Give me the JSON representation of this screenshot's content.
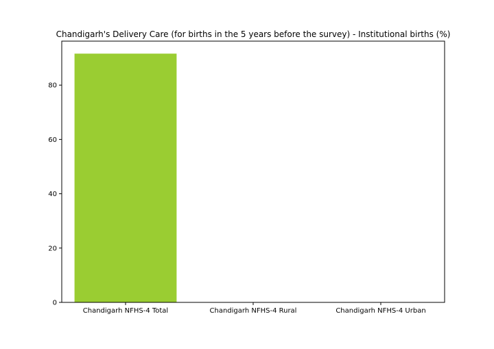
{
  "chart_data": {
    "type": "bar",
    "title": "Chandigarh's Delivery Care (for births in the 5 years before the survey) - Institutional births (%)",
    "categories": [
      "Chandigarh NFHS-4 Total",
      "Chandigarh NFHS-4 Rural",
      "Chandigarh NFHS-4 Urban"
    ],
    "values": [
      91.6,
      0,
      0
    ],
    "xlabel": "",
    "ylabel": "",
    "ylim": [
      0,
      96.2
    ],
    "yticks": [
      0,
      20,
      40,
      60,
      80
    ],
    "grid": false,
    "legend": "none",
    "bar_color": "#9acd32"
  }
}
